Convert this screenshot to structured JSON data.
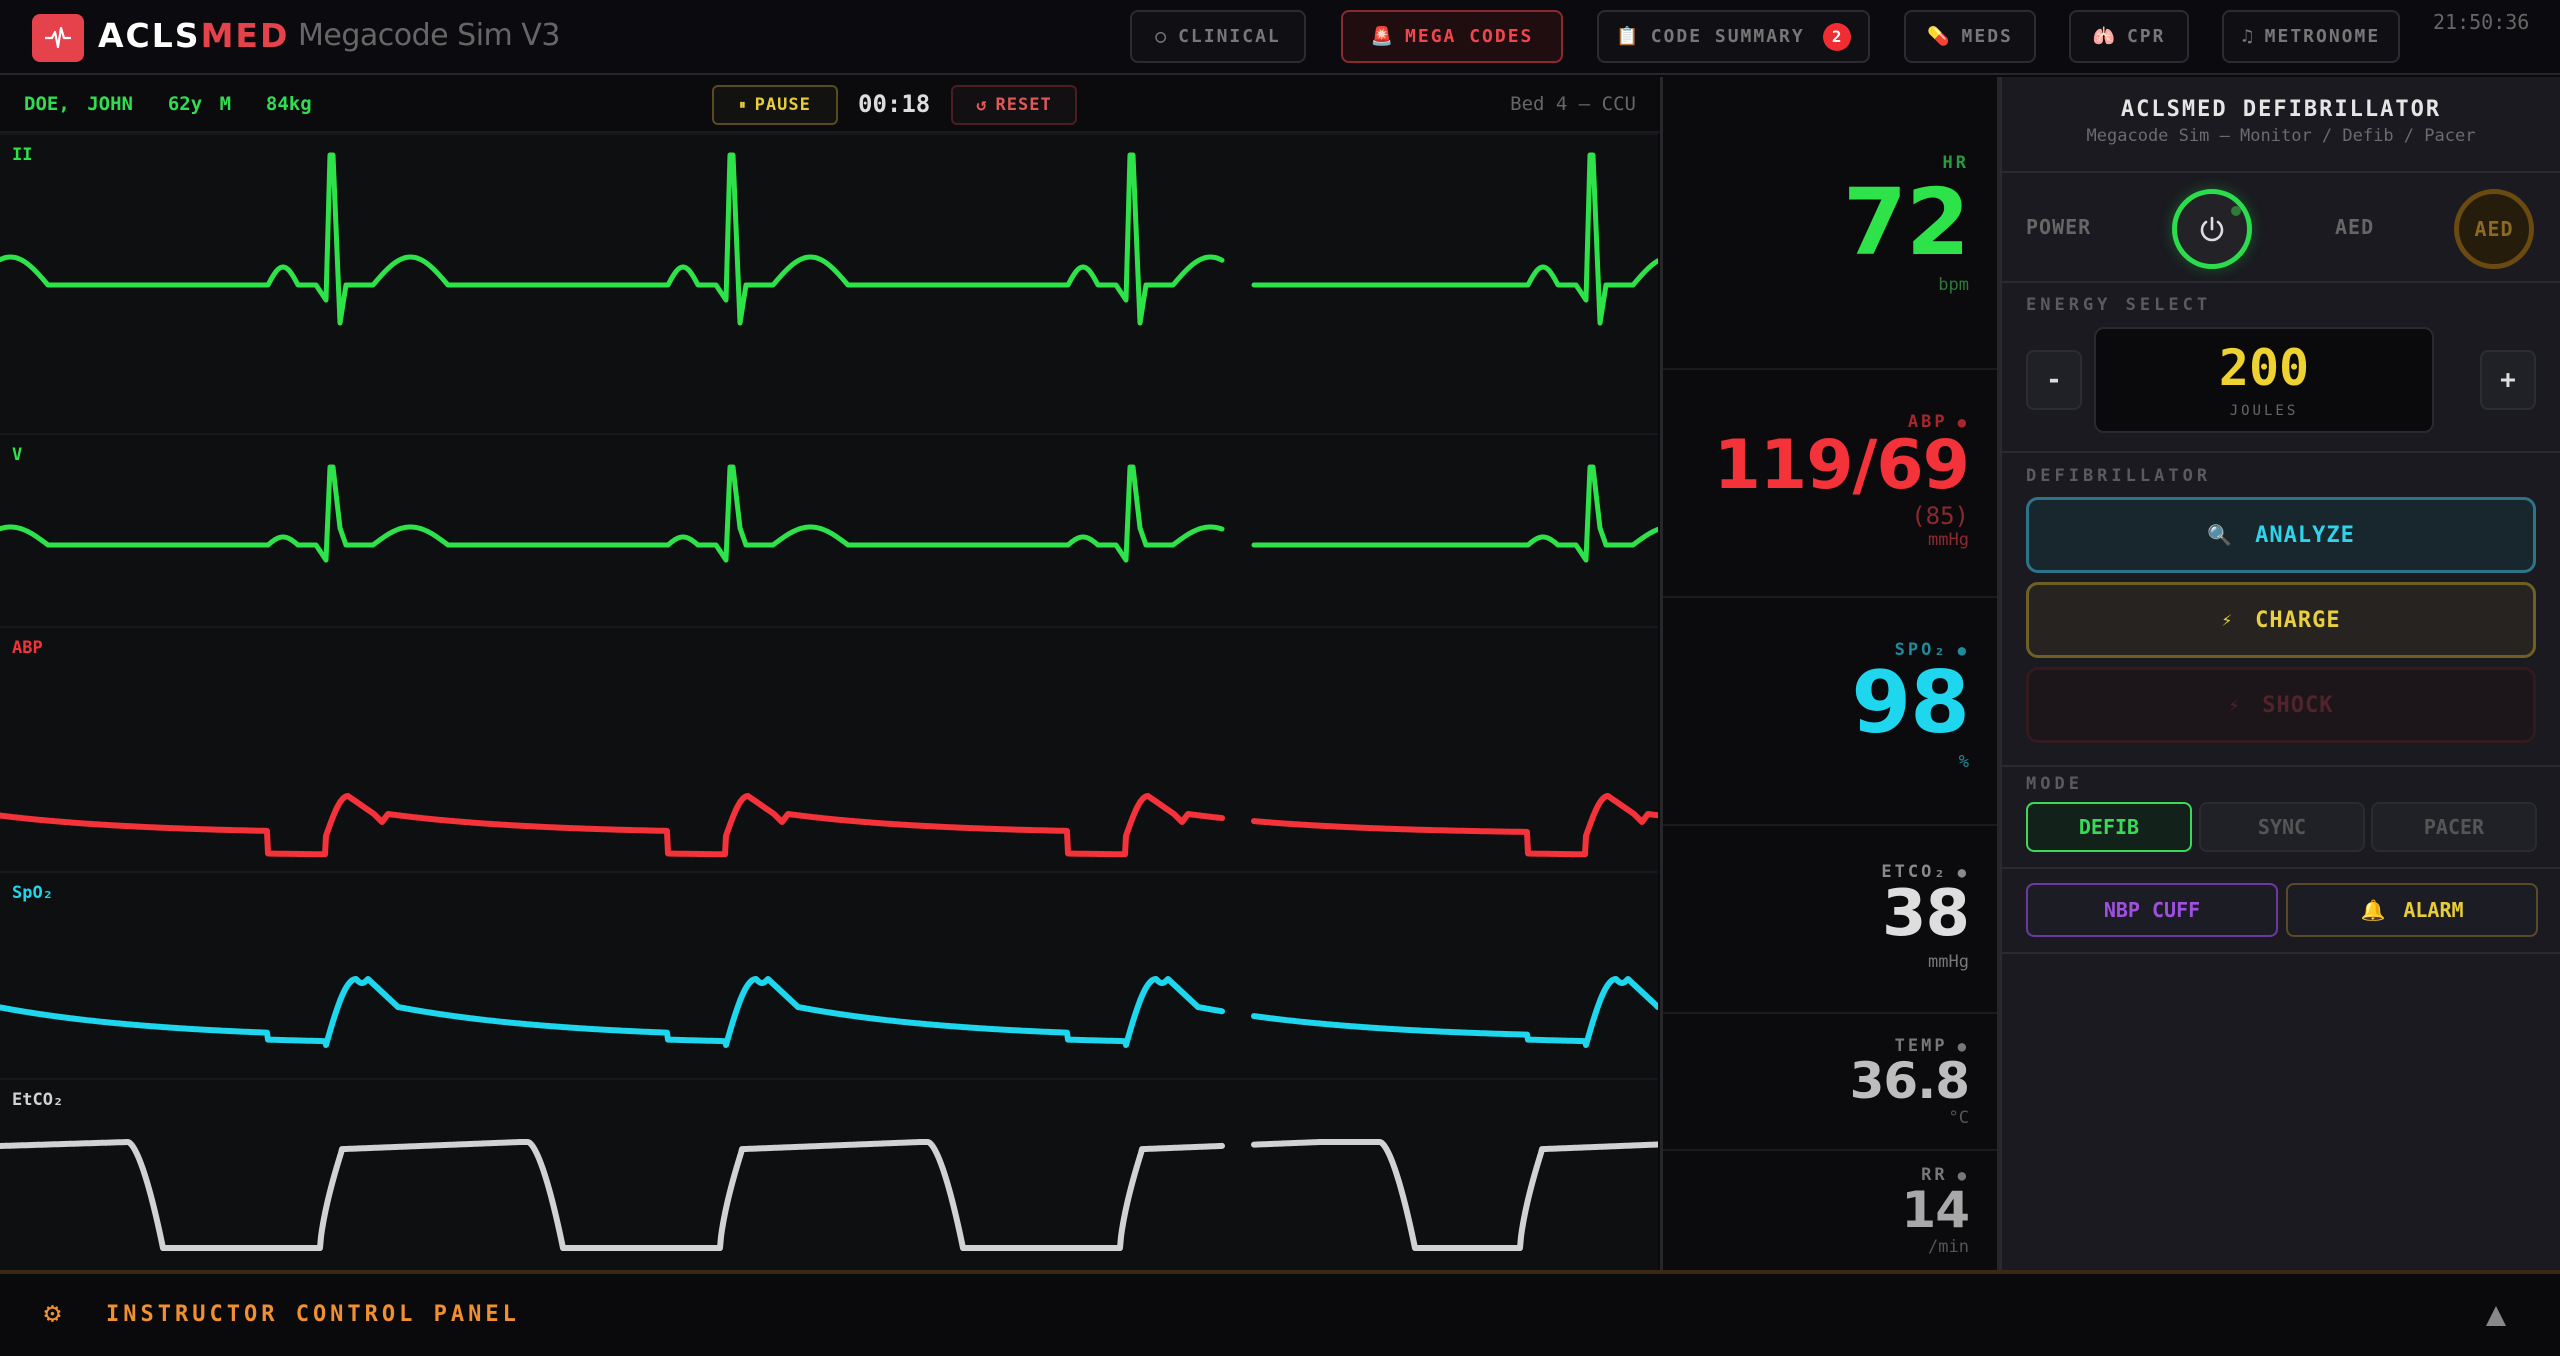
{
  "header": {
    "brand_a": "ACLS",
    "brand_b": "MED",
    "subtitle": "Megacode Sim V3",
    "clock": "21:50:36",
    "nav": [
      {
        "icon": "○",
        "label": "CLINICAL"
      },
      {
        "icon": "🚨",
        "label": "MEGA CODES"
      },
      {
        "icon": "📋",
        "label": "CODE SUMMARY",
        "badge": "2"
      },
      {
        "icon": "💊",
        "label": "MEDS"
      },
      {
        "icon": "🫁",
        "label": "CPR"
      },
      {
        "icon": "♫",
        "label": "METRONOME"
      }
    ]
  },
  "patient_bar": {
    "patient": "DOE, JOHN  62y M  84kg",
    "pause_icon": "⏸",
    "pause_label": "PAUSE",
    "timer": "00:18",
    "reset_icon": "↺",
    "reset_label": "RESET",
    "bed": "Bed 4 — CCU"
  },
  "waveforms": [
    {
      "label": "II",
      "color": "#2ee34a"
    },
    {
      "label": "V",
      "color": "#2ee34a"
    },
    {
      "label": "ABP",
      "color": "#f4323a"
    },
    {
      "label": "SpO₂",
      "color": "#1ed6ee"
    },
    {
      "label": "EtCO₂",
      "color": "#d2d2d2"
    }
  ],
  "vitals": [
    {
      "label": "HR",
      "dot": "",
      "value": "72",
      "sub": "",
      "unit": "bpm",
      "color": "#2ee34a",
      "label_color": "#2a9a3e"
    },
    {
      "label": "ABP",
      "dot": "●",
      "value": "119/69",
      "sub": "(85)",
      "unit": "mmHg",
      "color": "#f4323a",
      "label_color": "#a6262b"
    },
    {
      "label": "SPO₂",
      "dot": "●",
      "value": "98",
      "sub": "",
      "unit": "%",
      "color": "#1ed6ee",
      "label_color": "#1d8c9c"
    },
    {
      "label": "ETCO₂",
      "dot": "●",
      "value": "38",
      "sub": "",
      "unit": "mmHg",
      "color": "#dedede",
      "label_color": "#8a8a8a"
    },
    {
      "label": "TEMP",
      "dot": "●",
      "value": "36.8",
      "sub": "",
      "unit": "°C",
      "color": "#bdbdbd",
      "label_color": "#777"
    },
    {
      "label": "RR",
      "dot": "●",
      "value": "14",
      "sub": "",
      "unit": "/min",
      "color": "#a8a8a8",
      "label_color": "#777"
    }
  ],
  "defib": {
    "title": "ACLSMED DEFIBRILLATOR",
    "subtitle": "Megacode Sim — Monitor / Defib / Pacer",
    "power_label": "POWER",
    "aed_label": "AED",
    "aed_button": "AED",
    "energy_section": "ENERGY SELECT",
    "energy_minus": "-",
    "energy_plus": "+",
    "energy_value": "200",
    "energy_unit": "JOULES",
    "defib_section": "DEFIBRILLATOR",
    "analyze_icon": "🔍",
    "analyze_label": "ANALYZE",
    "charge_icon": "⚡",
    "charge_label": "CHARGE",
    "shock_icon": "⚡",
    "shock_label": "SHOCK",
    "mode_section": "MODE",
    "modes": [
      "DEFIB",
      "SYNC",
      "PACER"
    ],
    "active_mode": "DEFIB",
    "nbp_label": "NBP CUFF",
    "alarm_icon": "🔔",
    "alarm_label": "ALARM"
  },
  "footer": {
    "gear_icon": "⚙",
    "title": "INSTRUCTOR CONTROL PANEL"
  }
}
